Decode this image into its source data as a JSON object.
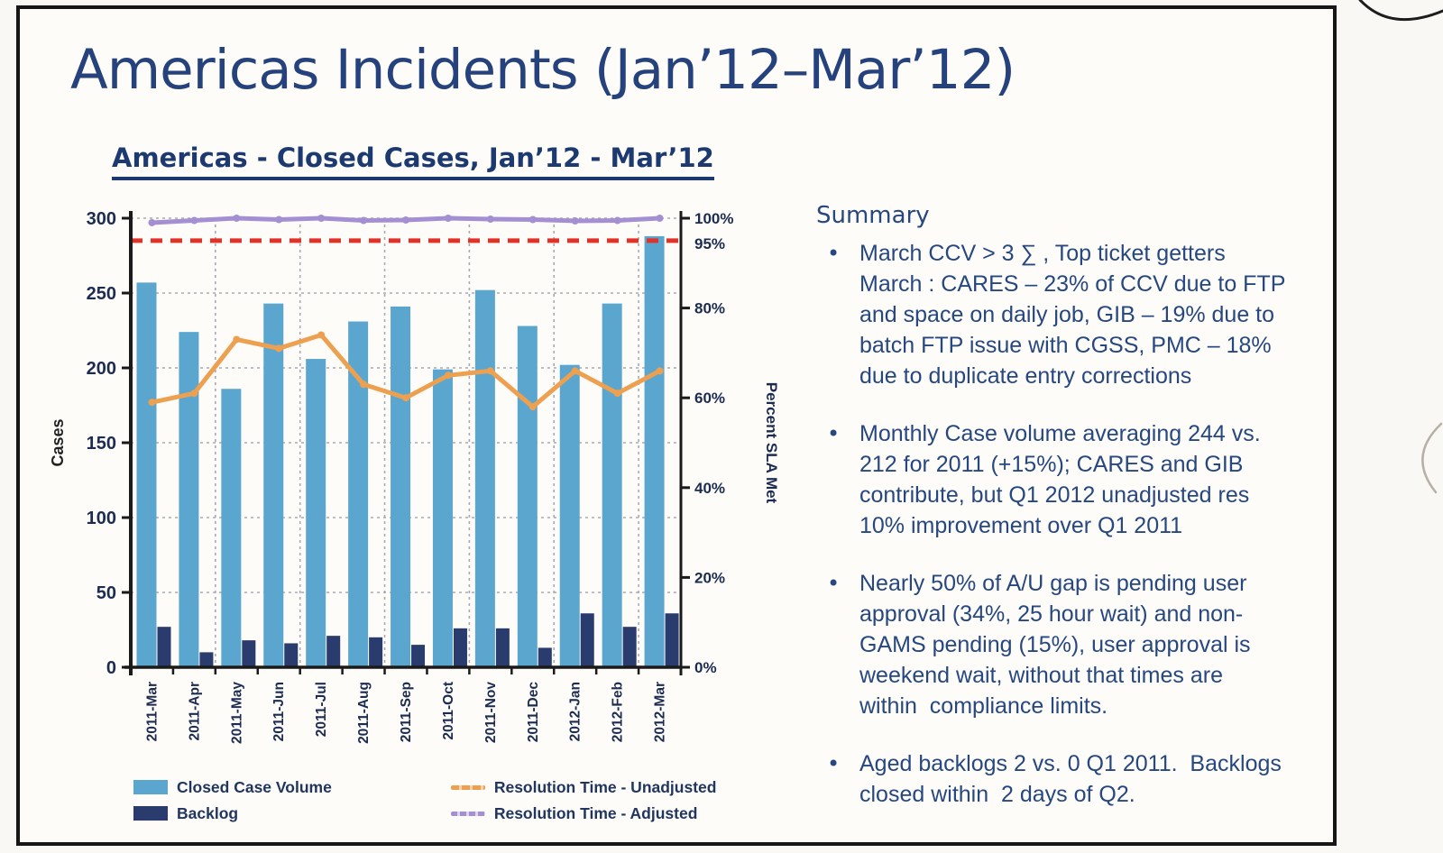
{
  "slide": {
    "title": "Americas Incidents (Jan’12–Mar’12)"
  },
  "chart_section": {
    "title": "Americas - Closed Cases, Jan’12 - Mar’12"
  },
  "chart_data": {
    "type": "bar",
    "subtype": "combo-bar-line-dual-axis",
    "categories": [
      "2011-Mar",
      "2011-Apr",
      "2011-May",
      "2011-Jun",
      "2011-Jul",
      "2011-Aug",
      "2011-Sep",
      "2011-Oct",
      "2011-Nov",
      "2011-Dec",
      "2012-Jan",
      "2012-Feb",
      "2012-Mar"
    ],
    "series": [
      {
        "name": "Closed Case Volume",
        "type": "bar",
        "axis": "left",
        "color": "#5ba6cf",
        "values": [
          257,
          224,
          186,
          243,
          206,
          231,
          241,
          199,
          252,
          228,
          202,
          243,
          288
        ]
      },
      {
        "name": "Backlog",
        "type": "bar",
        "axis": "left",
        "color": "#2a3c6e",
        "values": [
          27,
          10,
          18,
          16,
          21,
          20,
          15,
          26,
          26,
          13,
          36,
          27,
          36
        ]
      },
      {
        "name": "Resolution Time - Unadjusted",
        "type": "line",
        "axis": "right",
        "color": "#eda04f",
        "values": [
          59,
          61,
          73,
          71,
          74,
          63,
          60,
          65,
          66,
          58,
          66,
          61,
          66
        ]
      },
      {
        "name": "Resolution Time - Adjusted",
        "type": "line",
        "axis": "right",
        "color": "#a38fd1",
        "values": [
          99,
          99.5,
          100,
          99.7,
          100,
          99.5,
          99.6,
          100,
          99.8,
          99.7,
          99.4,
          99.5,
          100
        ]
      }
    ],
    "reference_line": {
      "label": "95%",
      "value": 95,
      "color": "#e23127",
      "style": "dashed"
    },
    "left_axis": {
      "title": "Cases",
      "range": [
        0,
        300
      ],
      "ticks": [
        0,
        50,
        100,
        150,
        200,
        250,
        300
      ]
    },
    "right_axis": {
      "title": "Percent SLA Met",
      "range": [
        0,
        100
      ],
      "ticks": [
        0,
        20,
        40,
        60,
        80,
        100
      ],
      "tick_suffix": "%",
      "extra_label": "95%"
    },
    "grid": "dashed",
    "legend_position": "bottom"
  },
  "summary": {
    "heading": "Summary",
    "bullet_char": "•",
    "bullets": [
      [
        "March CCV > 3 ∑ , Top ticket getters",
        "March : CARES – 23% of CCV due to FTP",
        "and space on daily job, GIB – 19% due to",
        "batch FTP issue with CGSS, PMC – 18%",
        "due to duplicate entry corrections"
      ],
      [
        "Monthly Case volume averaging 244 vs.",
        "212 for 2011 (+15%); CARES and GIB",
        "contribute, but Q1 2012 unadjusted res",
        "10% improvement over Q1 2011"
      ],
      [
        "Nearly 50% of A/U gap is pending user",
        "approval (34%, 25 hour wait) and non-",
        "GAMS pending (15%), user approval is",
        "weekend wait, without that times are",
        "within  compliance limits."
      ],
      [
        "Aged backlogs 2 vs. 0 Q1 2011.  Backlogs",
        "closed within  2 days of Q2."
      ]
    ]
  }
}
